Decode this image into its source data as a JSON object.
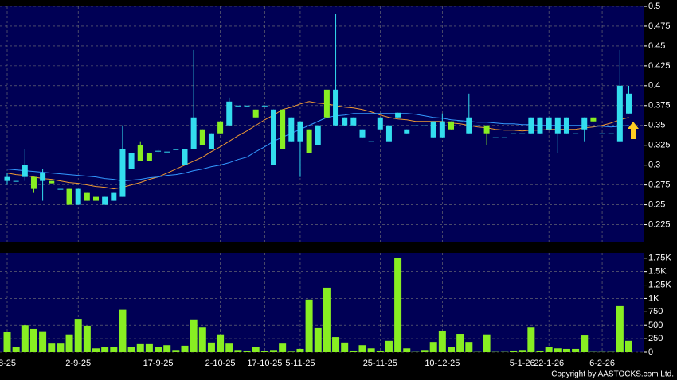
{
  "chart_data": [
    {
      "type": "candlestick",
      "categories": [
        "8-25",
        null,
        null,
        null,
        null,
        null,
        null,
        null,
        "2-9-25",
        null,
        null,
        null,
        null,
        null,
        null,
        null,
        null,
        "17-9-25",
        null,
        null,
        null,
        null,
        null,
        null,
        "2-10-25",
        null,
        null,
        null,
        null,
        "17-10-25",
        null,
        null,
        null,
        "5-11-25",
        null,
        null,
        null,
        null,
        null,
        null,
        null,
        null,
        "25-11-25",
        null,
        null,
        null,
        null,
        null,
        null,
        "10-12-25",
        null,
        null,
        null,
        null,
        null,
        null,
        null,
        null,
        "5-1-26",
        null,
        null,
        "22-1-26",
        null,
        null,
        null,
        null,
        null,
        "6-2-26",
        null,
        null,
        null
      ],
      "open": [
        0.28,
        0.28,
        0.285,
        0.285,
        0.28,
        0.28,
        0.27,
        0.27,
        0.25,
        0.265,
        0.26,
        0.25,
        0.255,
        0.26,
        0.295,
        0.325,
        0.315,
        0.318,
        0.317,
        0.32,
        0.3,
        0.32,
        0.345,
        0.32,
        0.355,
        0.35,
        0.375,
        0.375,
        0.37,
        0.375,
        0.3,
        0.37,
        0.33,
        0.33,
        0.345,
        0.325,
        0.395,
        0.35,
        0.35,
        0.35,
        0.335,
        0.33,
        0.345,
        0.33,
        0.36,
        0.34,
        0.35,
        0.35,
        0.335,
        0.335,
        0.355,
        0.355,
        0.34,
        0.35,
        0.35,
        0.335,
        0.335,
        0.34,
        0.34,
        0.34,
        0.34,
        0.345,
        0.34,
        0.34,
        0.34,
        0.345,
        0.36,
        0.34,
        0.34,
        0.33,
        0.365
      ],
      "high": [
        0.29,
        0.28,
        0.32,
        0.285,
        0.295,
        0.28,
        0.27,
        0.27,
        0.27,
        0.265,
        0.26,
        0.26,
        0.265,
        0.35,
        0.315,
        0.33,
        0.315,
        0.32,
        0.317,
        0.32,
        0.32,
        0.445,
        0.345,
        0.34,
        0.355,
        0.385,
        0.375,
        0.375,
        0.37,
        0.375,
        0.37,
        0.37,
        0.36,
        0.355,
        0.345,
        0.35,
        0.395,
        0.49,
        0.36,
        0.36,
        0.345,
        0.33,
        0.36,
        0.35,
        0.366,
        0.345,
        0.35,
        0.35,
        0.355,
        0.365,
        0.355,
        0.355,
        0.39,
        0.35,
        0.35,
        0.335,
        0.335,
        0.34,
        0.34,
        0.36,
        0.36,
        0.36,
        0.36,
        0.36,
        0.34,
        0.36,
        0.36,
        0.34,
        0.34,
        0.445,
        0.4
      ],
      "low": [
        0.275,
        0.28,
        0.28,
        0.265,
        0.255,
        0.277,
        0.27,
        0.25,
        0.25,
        0.255,
        0.255,
        0.25,
        0.255,
        0.26,
        0.295,
        0.305,
        0.305,
        0.315,
        0.317,
        0.32,
        0.3,
        0.32,
        0.325,
        0.32,
        0.34,
        0.35,
        0.375,
        0.375,
        0.36,
        0.375,
        0.3,
        0.32,
        0.33,
        0.285,
        0.315,
        0.325,
        0.36,
        0.35,
        0.35,
        0.35,
        0.335,
        0.33,
        0.345,
        0.33,
        0.36,
        0.34,
        0.35,
        0.35,
        0.335,
        0.335,
        0.345,
        0.355,
        0.34,
        0.35,
        0.325,
        0.335,
        0.335,
        0.34,
        0.34,
        0.34,
        0.34,
        0.345,
        0.315,
        0.34,
        0.34,
        0.33,
        0.355,
        0.34,
        0.34,
        0.33,
        0.365
      ],
      "close": [
        0.285,
        0.28,
        0.3,
        0.27,
        0.29,
        0.277,
        0.27,
        0.25,
        0.27,
        0.255,
        0.255,
        0.26,
        0.265,
        0.32,
        0.315,
        0.305,
        0.305,
        0.318,
        0.317,
        0.32,
        0.32,
        0.36,
        0.325,
        0.34,
        0.34,
        0.38,
        0.375,
        0.375,
        0.36,
        0.375,
        0.37,
        0.32,
        0.36,
        0.355,
        0.315,
        0.35,
        0.36,
        0.395,
        0.36,
        0.36,
        0.345,
        0.33,
        0.36,
        0.35,
        0.366,
        0.345,
        0.35,
        0.35,
        0.355,
        0.355,
        0.345,
        0.355,
        0.36,
        0.35,
        0.34,
        0.335,
        0.335,
        0.34,
        0.34,
        0.36,
        0.36,
        0.36,
        0.36,
        0.36,
        0.34,
        0.36,
        0.355,
        0.34,
        0.34,
        0.4,
        0.39
      ],
      "up_color": "#33ddee",
      "down_color": "#88ee22",
      "lines": [
        {
          "color": "#ee9933",
          "values": [
            0.29,
            0.288,
            0.287,
            0.285,
            0.283,
            0.282,
            0.28,
            0.278,
            0.277,
            0.275,
            0.273,
            0.272,
            0.27,
            0.272,
            0.275,
            0.278,
            0.282,
            0.285,
            0.29,
            0.295,
            0.3,
            0.305,
            0.31,
            0.317,
            0.323,
            0.33,
            0.337,
            0.343,
            0.35,
            0.357,
            0.363,
            0.37,
            0.373,
            0.377,
            0.38,
            0.378,
            0.377,
            0.375,
            0.373,
            0.372,
            0.37,
            0.367,
            0.363,
            0.36,
            0.358,
            0.357,
            0.355,
            0.355,
            0.355,
            0.355,
            0.353,
            0.352,
            0.35,
            0.348,
            0.347,
            0.345,
            0.344,
            0.344,
            0.343,
            0.344,
            0.344,
            0.345,
            0.345,
            0.345,
            0.345,
            0.347,
            0.348,
            0.35,
            0.353,
            0.357,
            0.36
          ]
        },
        {
          "color": "#3399ff",
          "values": [
            0.295,
            0.294,
            0.293,
            0.292,
            0.291,
            0.29,
            0.289,
            0.288,
            0.287,
            0.286,
            0.285,
            0.283,
            0.282,
            0.28,
            0.281,
            0.282,
            0.284,
            0.285,
            0.287,
            0.288,
            0.29,
            0.293,
            0.295,
            0.298,
            0.3,
            0.303,
            0.307,
            0.31,
            0.317,
            0.323,
            0.33,
            0.335,
            0.34,
            0.345,
            0.35,
            0.355,
            0.36,
            0.362,
            0.363,
            0.365,
            0.365,
            0.365,
            0.365,
            0.365,
            0.365,
            0.365,
            0.364,
            0.362,
            0.36,
            0.359,
            0.357,
            0.356,
            0.355,
            0.354,
            0.354,
            0.353,
            0.352,
            0.352,
            0.351,
            0.351,
            0.35,
            0.35,
            0.35,
            0.35,
            0.35,
            0.35,
            0.349,
            0.349,
            0.348,
            0.349,
            0.35
          ]
        }
      ],
      "ylim": [
        0.2025,
        0.5
      ],
      "yticks": [
        0.225,
        0.25,
        0.275,
        0.3,
        0.325,
        0.35,
        0.375,
        0.4,
        0.425,
        0.45,
        0.475,
        0.5
      ],
      "grid": true
    },
    {
      "type": "bar",
      "values": [
        370,
        90,
        500,
        430,
        390,
        160,
        160,
        330,
        620,
        490,
        70,
        100,
        90,
        790,
        90,
        150,
        150,
        100,
        130,
        40,
        120,
        610,
        470,
        180,
        330,
        160,
        40,
        30,
        90,
        15,
        40,
        160,
        10,
        60,
        980,
        460,
        1200,
        280,
        180,
        30,
        130,
        70,
        30,
        210,
        1750,
        70,
        5,
        40,
        190,
        400,
        90,
        340,
        190,
        5,
        330,
        5,
        5,
        30,
        40,
        470,
        30,
        100,
        70,
        60,
        60,
        310,
        5,
        5,
        5,
        860,
        210
      ],
      "color": "#88ee22",
      "ylim": [
        0,
        1850
      ],
      "yticks": [
        0,
        250,
        500,
        750,
        {
          "value": 1000,
          "label": "1K"
        },
        {
          "value": 1250,
          "label": "1.25K"
        },
        {
          "value": 1500,
          "label": "1.5K"
        },
        {
          "value": 1750,
          "label": "1.75K"
        }
      ],
      "grid": true
    }
  ],
  "copyright": "Copyright by AASTOCKS.com Ltd."
}
